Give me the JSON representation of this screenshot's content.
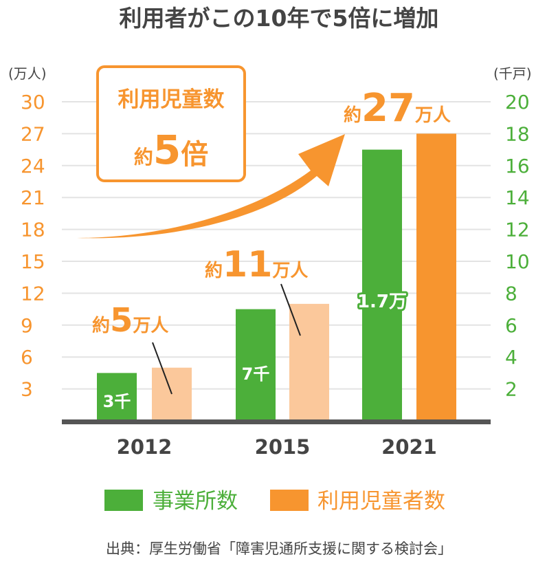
{
  "chart_data": {
    "type": "bar",
    "title": "利用者がこの10年で5倍に増加",
    "categories": [
      "2012",
      "2015",
      "2021"
    ],
    "left_unit": "(万人)",
    "right_unit": "(千戸)",
    "left_ticks": [
      "30",
      "27",
      "24",
      "21",
      "18",
      "15",
      "12",
      "9",
      "6",
      "3"
    ],
    "right_ticks": [
      "20",
      "18",
      "16",
      "14",
      "12",
      "10",
      "8",
      "6",
      "4",
      "2"
    ],
    "left_ylim": [
      0,
      30
    ],
    "right_ylim": [
      0,
      20
    ],
    "grid": true,
    "legend_position": "bottom",
    "series": [
      {
        "name": "事業所数",
        "axis": "right",
        "unit": "千",
        "values": [
          3,
          7,
          17
        ],
        "labels": [
          "3千",
          "7千",
          "1.7万"
        ]
      },
      {
        "name": "利用児童者数",
        "axis": "left",
        "unit": "万人",
        "values": [
          5,
          11,
          27
        ]
      }
    ],
    "annotations": {
      "callout_2012": {
        "prefix": "約",
        "number": "5",
        "unit": "万人"
      },
      "callout_2015": {
        "prefix": "約",
        "number": "11",
        "unit": "万人"
      },
      "callout_2021": {
        "prefix": "約",
        "number": "27",
        "unit": "万人"
      },
      "growth_box": {
        "line1": "利用児童数",
        "prefix": "約",
        "number": "5",
        "suffix": "倍"
      }
    },
    "source": "出典：厚生労働省「障害児通所支援に関する検討会」"
  },
  "colors": {
    "green": "#4caf3a",
    "orange": "#f7952f",
    "light_orange": "#fbc89b",
    "axis_orange": "#f7952f",
    "axis_green": "#4caf3a",
    "grid": "#e3e3e3",
    "baseline": "#555555",
    "text_dark": "#444444",
    "white": "#ffffff"
  }
}
